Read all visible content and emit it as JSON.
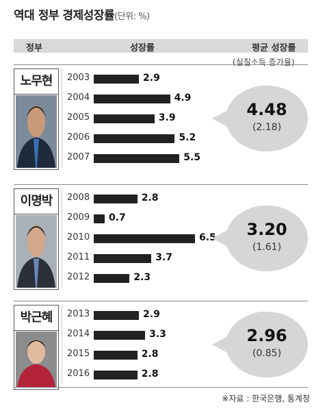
{
  "title": "역대 정부 경제성장률",
  "unit": "(단위: %)",
  "headers": {
    "government": "정부",
    "growth": "성장률",
    "average": "평균 성장률",
    "average_sub": "(실질소득 증가율)"
  },
  "footer": "※자료 : 한국은행, 통계청",
  "chart_data": {
    "type": "bar",
    "orientation": "horizontal",
    "xlim": [
      0,
      6.5
    ],
    "groups": [
      {
        "government": "노무현",
        "years": [
          "2003",
          "2004",
          "2005",
          "2006",
          "2007"
        ],
        "values": [
          2.9,
          4.9,
          3.9,
          5.2,
          5.5
        ],
        "labels": [
          "2.9",
          "4.9",
          "3.9",
          "5.2",
          "5.5"
        ],
        "average": "4.48",
        "income_growth": "(2.18)"
      },
      {
        "government": "이명박",
        "years": [
          "2008",
          "2009",
          "2010",
          "2011",
          "2012"
        ],
        "values": [
          2.8,
          0.7,
          6.5,
          3.7,
          2.3
        ],
        "labels": [
          "2.8",
          "0.7",
          "6.5",
          "3.7",
          "2.3"
        ],
        "average": "3.20",
        "income_growth": "(1.61)"
      },
      {
        "government": "박근혜",
        "years": [
          "2013",
          "2014",
          "2015",
          "2016"
        ],
        "values": [
          2.9,
          3.3,
          2.8,
          2.8
        ],
        "labels": [
          "2.9",
          "3.3",
          "2.8",
          "2.8"
        ],
        "average": "2.96",
        "income_growth": "(0.85)"
      }
    ]
  }
}
